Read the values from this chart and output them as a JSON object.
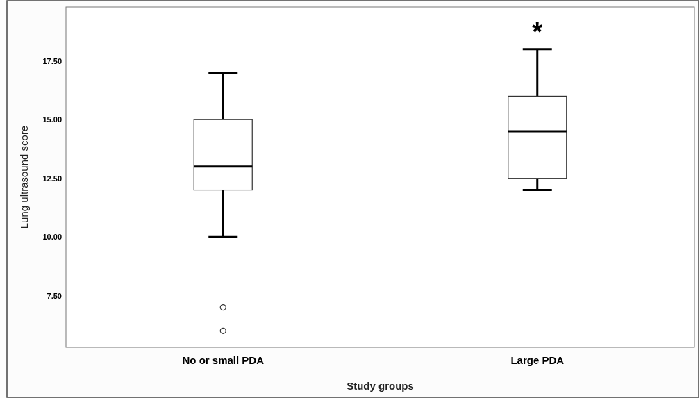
{
  "chart_data": {
    "type": "box",
    "xlabel": "Study groups",
    "ylabel": "Lung ultrasound score",
    "categories": [
      "No or small PDA",
      "Large PDA"
    ],
    "boxes": [
      {
        "low": 10,
        "q1": 12,
        "median": 13,
        "q3": 15,
        "high": 17,
        "outliers": [
          7,
          6
        ]
      },
      {
        "low": 12,
        "q1": 12.5,
        "median": 14.5,
        "q3": 16,
        "high": 18
      }
    ],
    "ylim": [
      5.3,
      19.8
    ],
    "yticks": [
      {
        "value": 7.5,
        "label": "7.50"
      },
      {
        "value": 10,
        "label": "10.00"
      },
      {
        "value": 12.5,
        "label": "12.50"
      },
      {
        "value": 15,
        "label": "15.00"
      },
      {
        "value": 17.5,
        "label": "17.50"
      }
    ],
    "annotations": [
      "*"
    ],
    "grid": false
  }
}
